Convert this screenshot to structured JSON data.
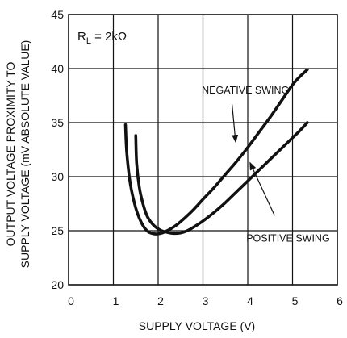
{
  "chart_data": {
    "type": "line",
    "xlabel": "SUPPLY VOLTAGE (V)",
    "ylabel_lines": [
      "OUTPUT VOLTAGE  PROXIMITY TO",
      "SUPPLY VOLTAGE (mV ABSOLUTE VALUE)"
    ],
    "xlim": [
      0,
      6
    ],
    "ylim": [
      20,
      45
    ],
    "x_ticks": [
      "0",
      "1",
      "2",
      "3",
      "4",
      "5",
      "6"
    ],
    "y_ticks": [
      "20",
      "25",
      "30",
      "35",
      "40",
      "45"
    ],
    "grid": true,
    "condition_label": {
      "main": "R",
      "sub": "L",
      "value": " = 2kΩ"
    },
    "series": [
      {
        "name": "NEGATIVE SWING",
        "x": [
          1.27,
          1.3,
          1.38,
          1.5,
          1.62,
          1.75,
          1.9,
          2.05,
          2.2,
          2.4,
          2.6,
          2.8,
          3.0,
          3.25,
          3.5,
          3.75,
          4.0,
          4.25,
          4.5,
          4.75,
          5.0,
          5.15,
          5.33
        ],
        "y": [
          34.8,
          32.2,
          29.3,
          27.1,
          25.8,
          25.0,
          24.72,
          24.75,
          25.0,
          25.5,
          26.2,
          27.0,
          27.9,
          29.0,
          30.2,
          31.4,
          32.7,
          34.1,
          35.5,
          37.0,
          38.5,
          39.2,
          39.9
        ]
      },
      {
        "name": "POSITIVE SWING",
        "x": [
          1.5,
          1.52,
          1.58,
          1.66,
          1.76,
          1.9,
          2.05,
          2.2,
          2.35,
          2.5,
          2.65,
          2.8,
          3.0,
          3.25,
          3.5,
          3.75,
          4.0,
          4.25,
          4.5,
          4.75,
          5.0,
          5.15,
          5.33
        ],
        "y": [
          33.8,
          31.2,
          29.0,
          27.5,
          26.3,
          25.5,
          25.05,
          24.85,
          24.75,
          24.8,
          25.0,
          25.35,
          25.9,
          26.7,
          27.6,
          28.6,
          29.6,
          30.6,
          31.6,
          32.6,
          33.6,
          34.2,
          35.0
        ]
      }
    ],
    "annotations": [
      {
        "text": "NEGATIVE SWING",
        "series": 0,
        "anchor_label": [
          3.95,
          37.7
        ],
        "arrow_from": [
          3.65,
          36.7
        ],
        "arrow_to": [
          3.73,
          33.2
        ]
      },
      {
        "text": "POSITIVE SWING",
        "series": 1,
        "anchor_label": [
          4.9,
          24.0
        ],
        "arrow_from": [
          4.6,
          26.4
        ],
        "arrow_to": [
          4.05,
          31.3
        ]
      }
    ]
  }
}
